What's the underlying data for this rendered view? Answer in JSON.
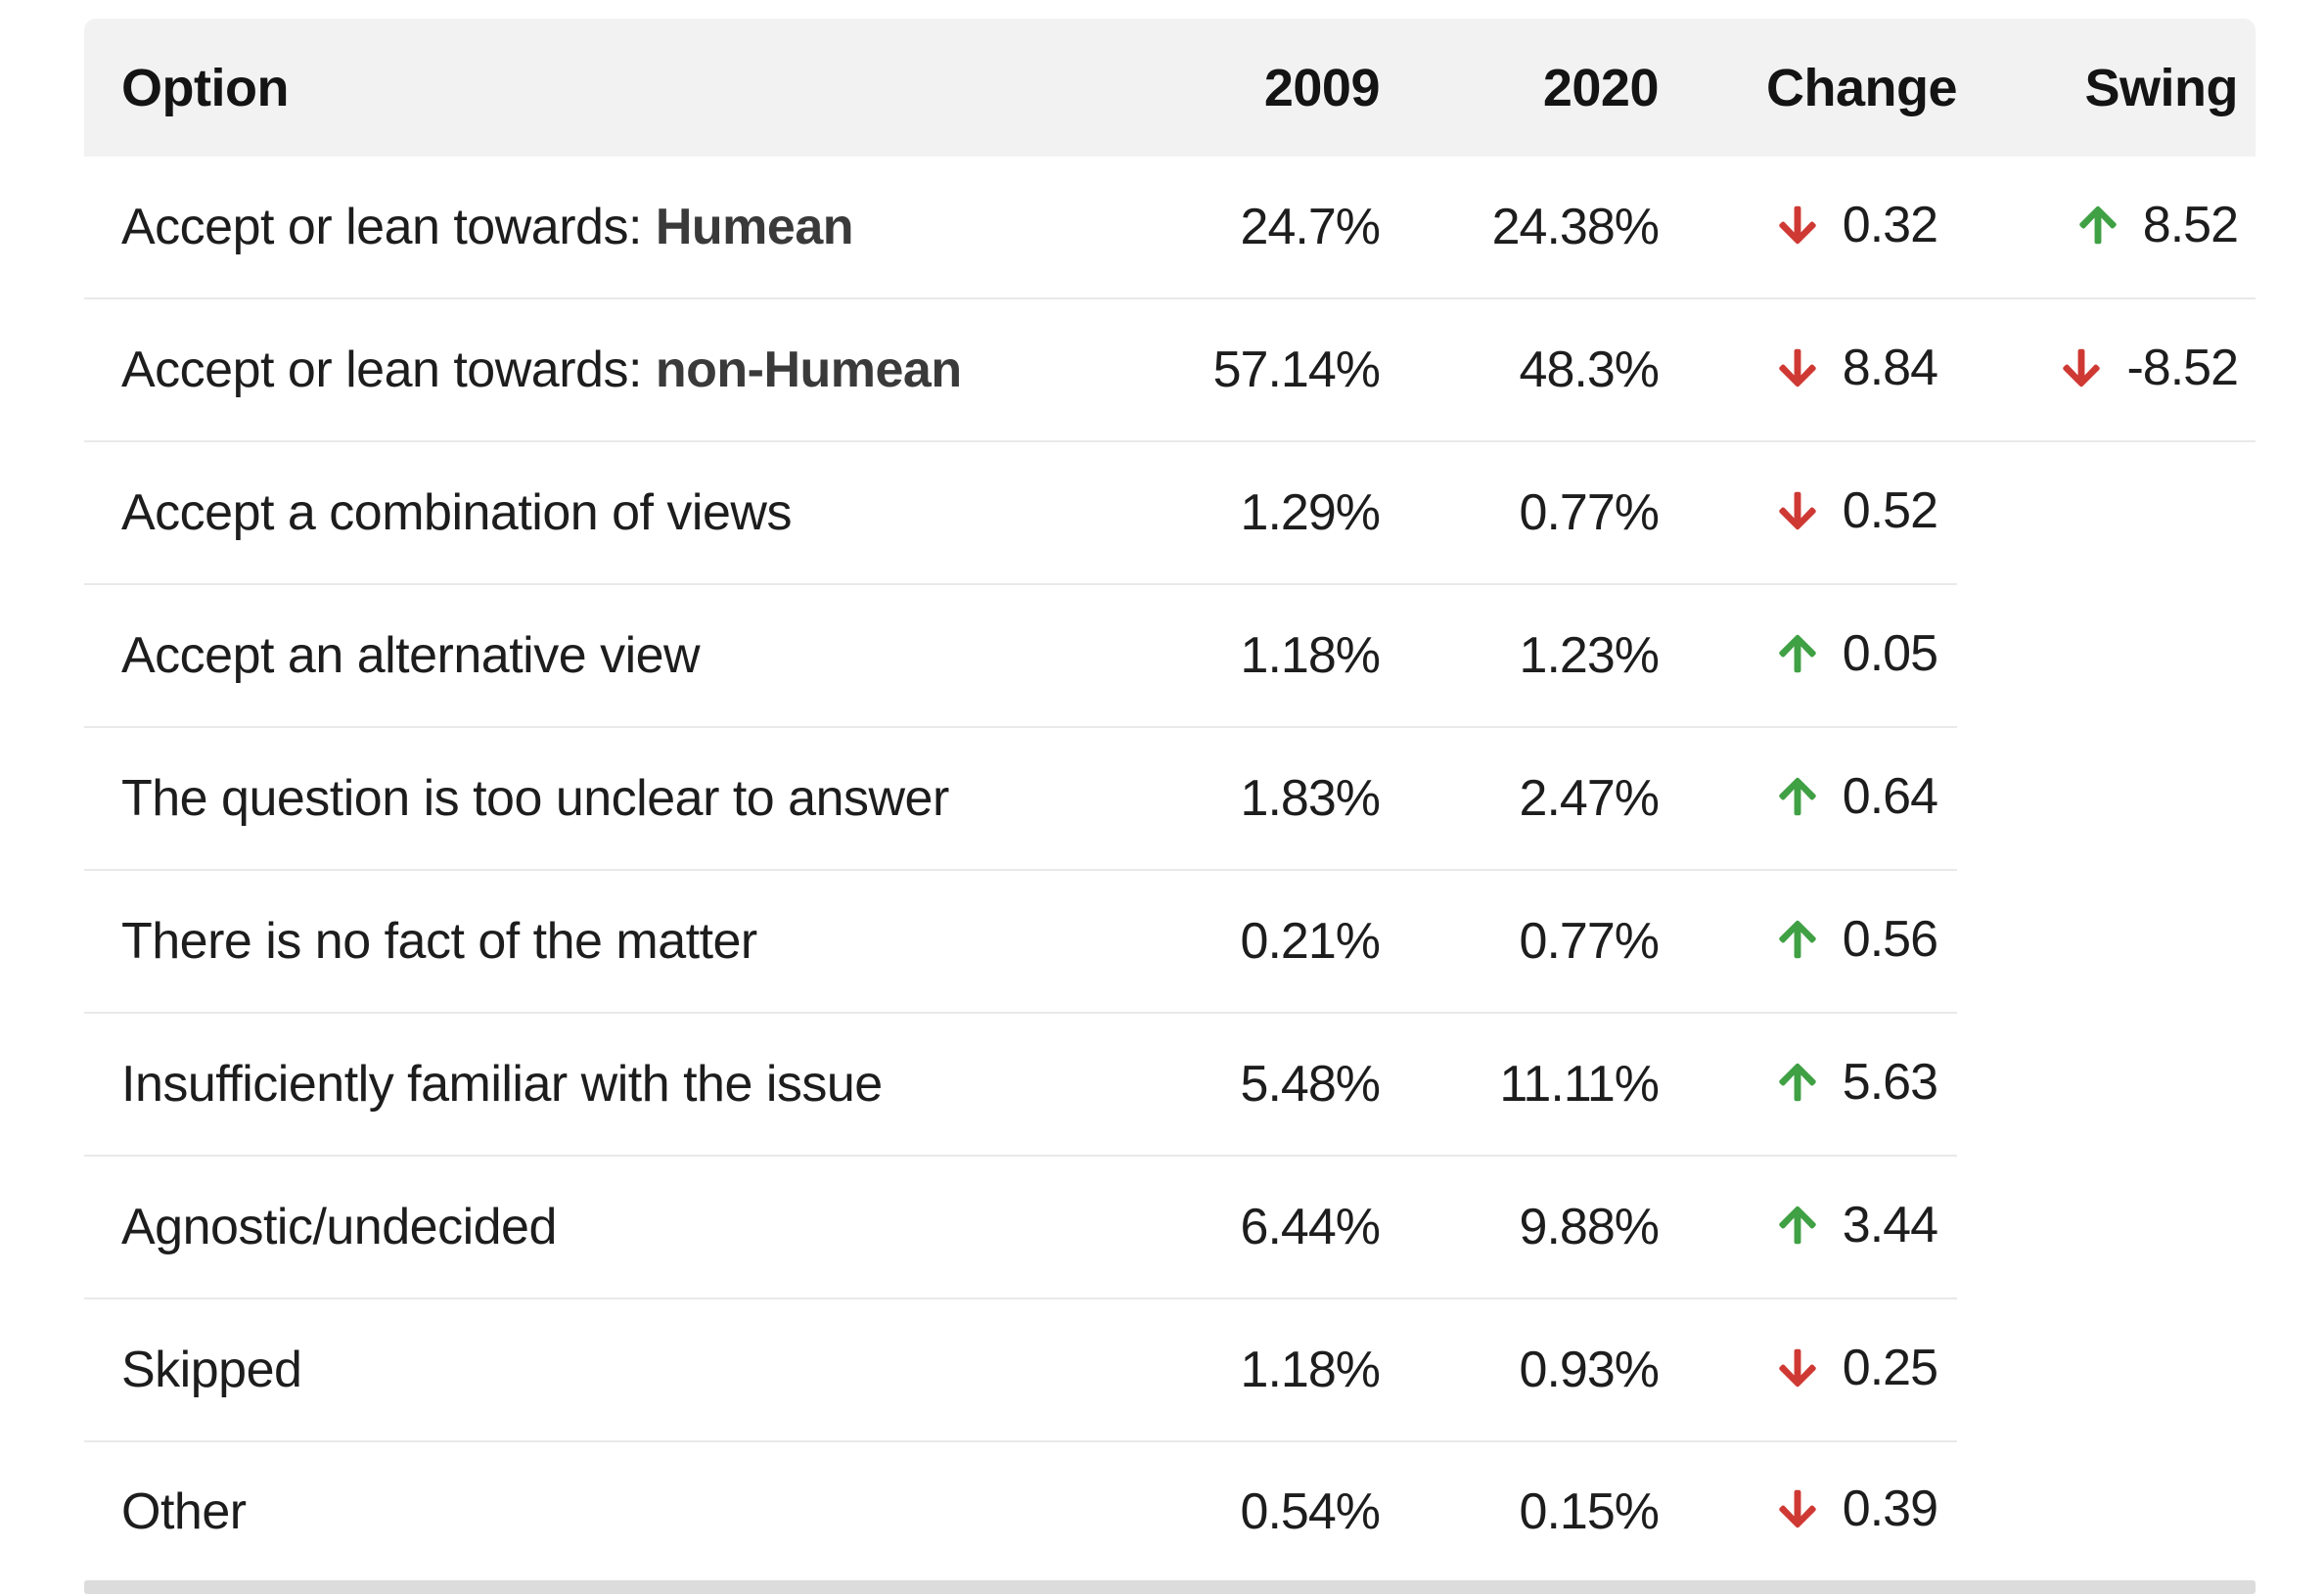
{
  "chart_data": {
    "type": "table",
    "title": "",
    "columns": [
      "Option",
      "2009",
      "2020",
      "Change",
      "Swing"
    ],
    "rows": [
      {
        "option": "Accept or lean towards: Humean",
        "2009": "24.7%",
        "2020": "24.38%",
        "change": -0.32,
        "swing": 8.52
      },
      {
        "option": "Accept or lean towards: non-Humean",
        "2009": "57.14%",
        "2020": "48.3%",
        "change": -8.84,
        "swing": -8.52
      },
      {
        "option": "Accept a combination of views",
        "2009": "1.29%",
        "2020": "0.77%",
        "change": -0.52,
        "swing": null
      },
      {
        "option": "Accept an alternative view",
        "2009": "1.18%",
        "2020": "1.23%",
        "change": 0.05,
        "swing": null
      },
      {
        "option": "The question is too unclear to answer",
        "2009": "1.83%",
        "2020": "2.47%",
        "change": 0.64,
        "swing": null
      },
      {
        "option": "There is no fact of the matter",
        "2009": "0.21%",
        "2020": "0.77%",
        "change": 0.56,
        "swing": null
      },
      {
        "option": "Insufficiently familiar with the issue",
        "2009": "5.48%",
        "2020": "11.11%",
        "change": 5.63,
        "swing": null
      },
      {
        "option": "Agnostic/undecided",
        "2009": "6.44%",
        "2020": "9.88%",
        "change": 3.44,
        "swing": null
      },
      {
        "option": "Skipped",
        "2009": "1.18%",
        "2020": "0.93%",
        "change": -0.25,
        "swing": null
      },
      {
        "option": "Other",
        "2009": "0.54%",
        "2020": "0.15%",
        "change": -0.39,
        "swing": null
      }
    ]
  },
  "table": {
    "header": {
      "option": "Option",
      "y2009": "2009",
      "y2020": "2020",
      "change": "Change",
      "swing": "Swing"
    },
    "rows": [
      {
        "option_regular": "Accept or lean towards: ",
        "option_bold": "Humean",
        "v2009": "24.7%",
        "v2020": "24.38%",
        "change_dir": "down",
        "change_value": "0.32",
        "swing_dir": "up",
        "swing_value": "8.52"
      },
      {
        "option_regular": "Accept or lean towards: ",
        "option_bold": "non-Humean",
        "v2009": "57.14%",
        "v2020": "48.3%",
        "change_dir": "down",
        "change_value": "8.84",
        "swing_dir": "down",
        "swing_value": "-8.52"
      },
      {
        "option_regular": "Accept a combination of views",
        "option_bold": "",
        "v2009": "1.29%",
        "v2020": "0.77%",
        "change_dir": "down",
        "change_value": "0.52",
        "swing_dir": "",
        "swing_value": ""
      },
      {
        "option_regular": "Accept an alternative view",
        "option_bold": "",
        "v2009": "1.18%",
        "v2020": "1.23%",
        "change_dir": "up",
        "change_value": "0.05",
        "swing_dir": "",
        "swing_value": ""
      },
      {
        "option_regular": "The question is too unclear to answer",
        "option_bold": "",
        "v2009": "1.83%",
        "v2020": "2.47%",
        "change_dir": "up",
        "change_value": "0.64",
        "swing_dir": "",
        "swing_value": ""
      },
      {
        "option_regular": "There is no fact of the matter",
        "option_bold": "",
        "v2009": "0.21%",
        "v2020": "0.77%",
        "change_dir": "up",
        "change_value": "0.56",
        "swing_dir": "",
        "swing_value": ""
      },
      {
        "option_regular": "Insufficiently familiar with the issue",
        "option_bold": "",
        "v2009": "5.48%",
        "v2020": "11.11%",
        "change_dir": "up",
        "change_value": "5.63",
        "swing_dir": "",
        "swing_value": ""
      },
      {
        "option_regular": "Agnostic/undecided",
        "option_bold": "",
        "v2009": "6.44%",
        "v2020": "9.88%",
        "change_dir": "up",
        "change_value": "3.44",
        "swing_dir": "",
        "swing_value": ""
      },
      {
        "option_regular": "Skipped",
        "option_bold": "",
        "v2009": "1.18%",
        "v2020": "0.93%",
        "change_dir": "down",
        "change_value": "0.25",
        "swing_dir": "",
        "swing_value": ""
      },
      {
        "option_regular": "Other",
        "option_bold": "",
        "v2009": "0.54%",
        "v2020": "0.15%",
        "change_dir": "down",
        "change_value": "0.39",
        "swing_dir": "",
        "swing_value": ""
      }
    ]
  },
  "icons": {
    "up": "arrow-up-icon",
    "down": "arrow-down-icon"
  },
  "colors": {
    "up_green": "#3fa044",
    "down_red": "#cf3934",
    "header_bg": "#f2f2f2",
    "row_divider": "#e9e9e9",
    "bottom_bar": "#dcdcdc"
  }
}
